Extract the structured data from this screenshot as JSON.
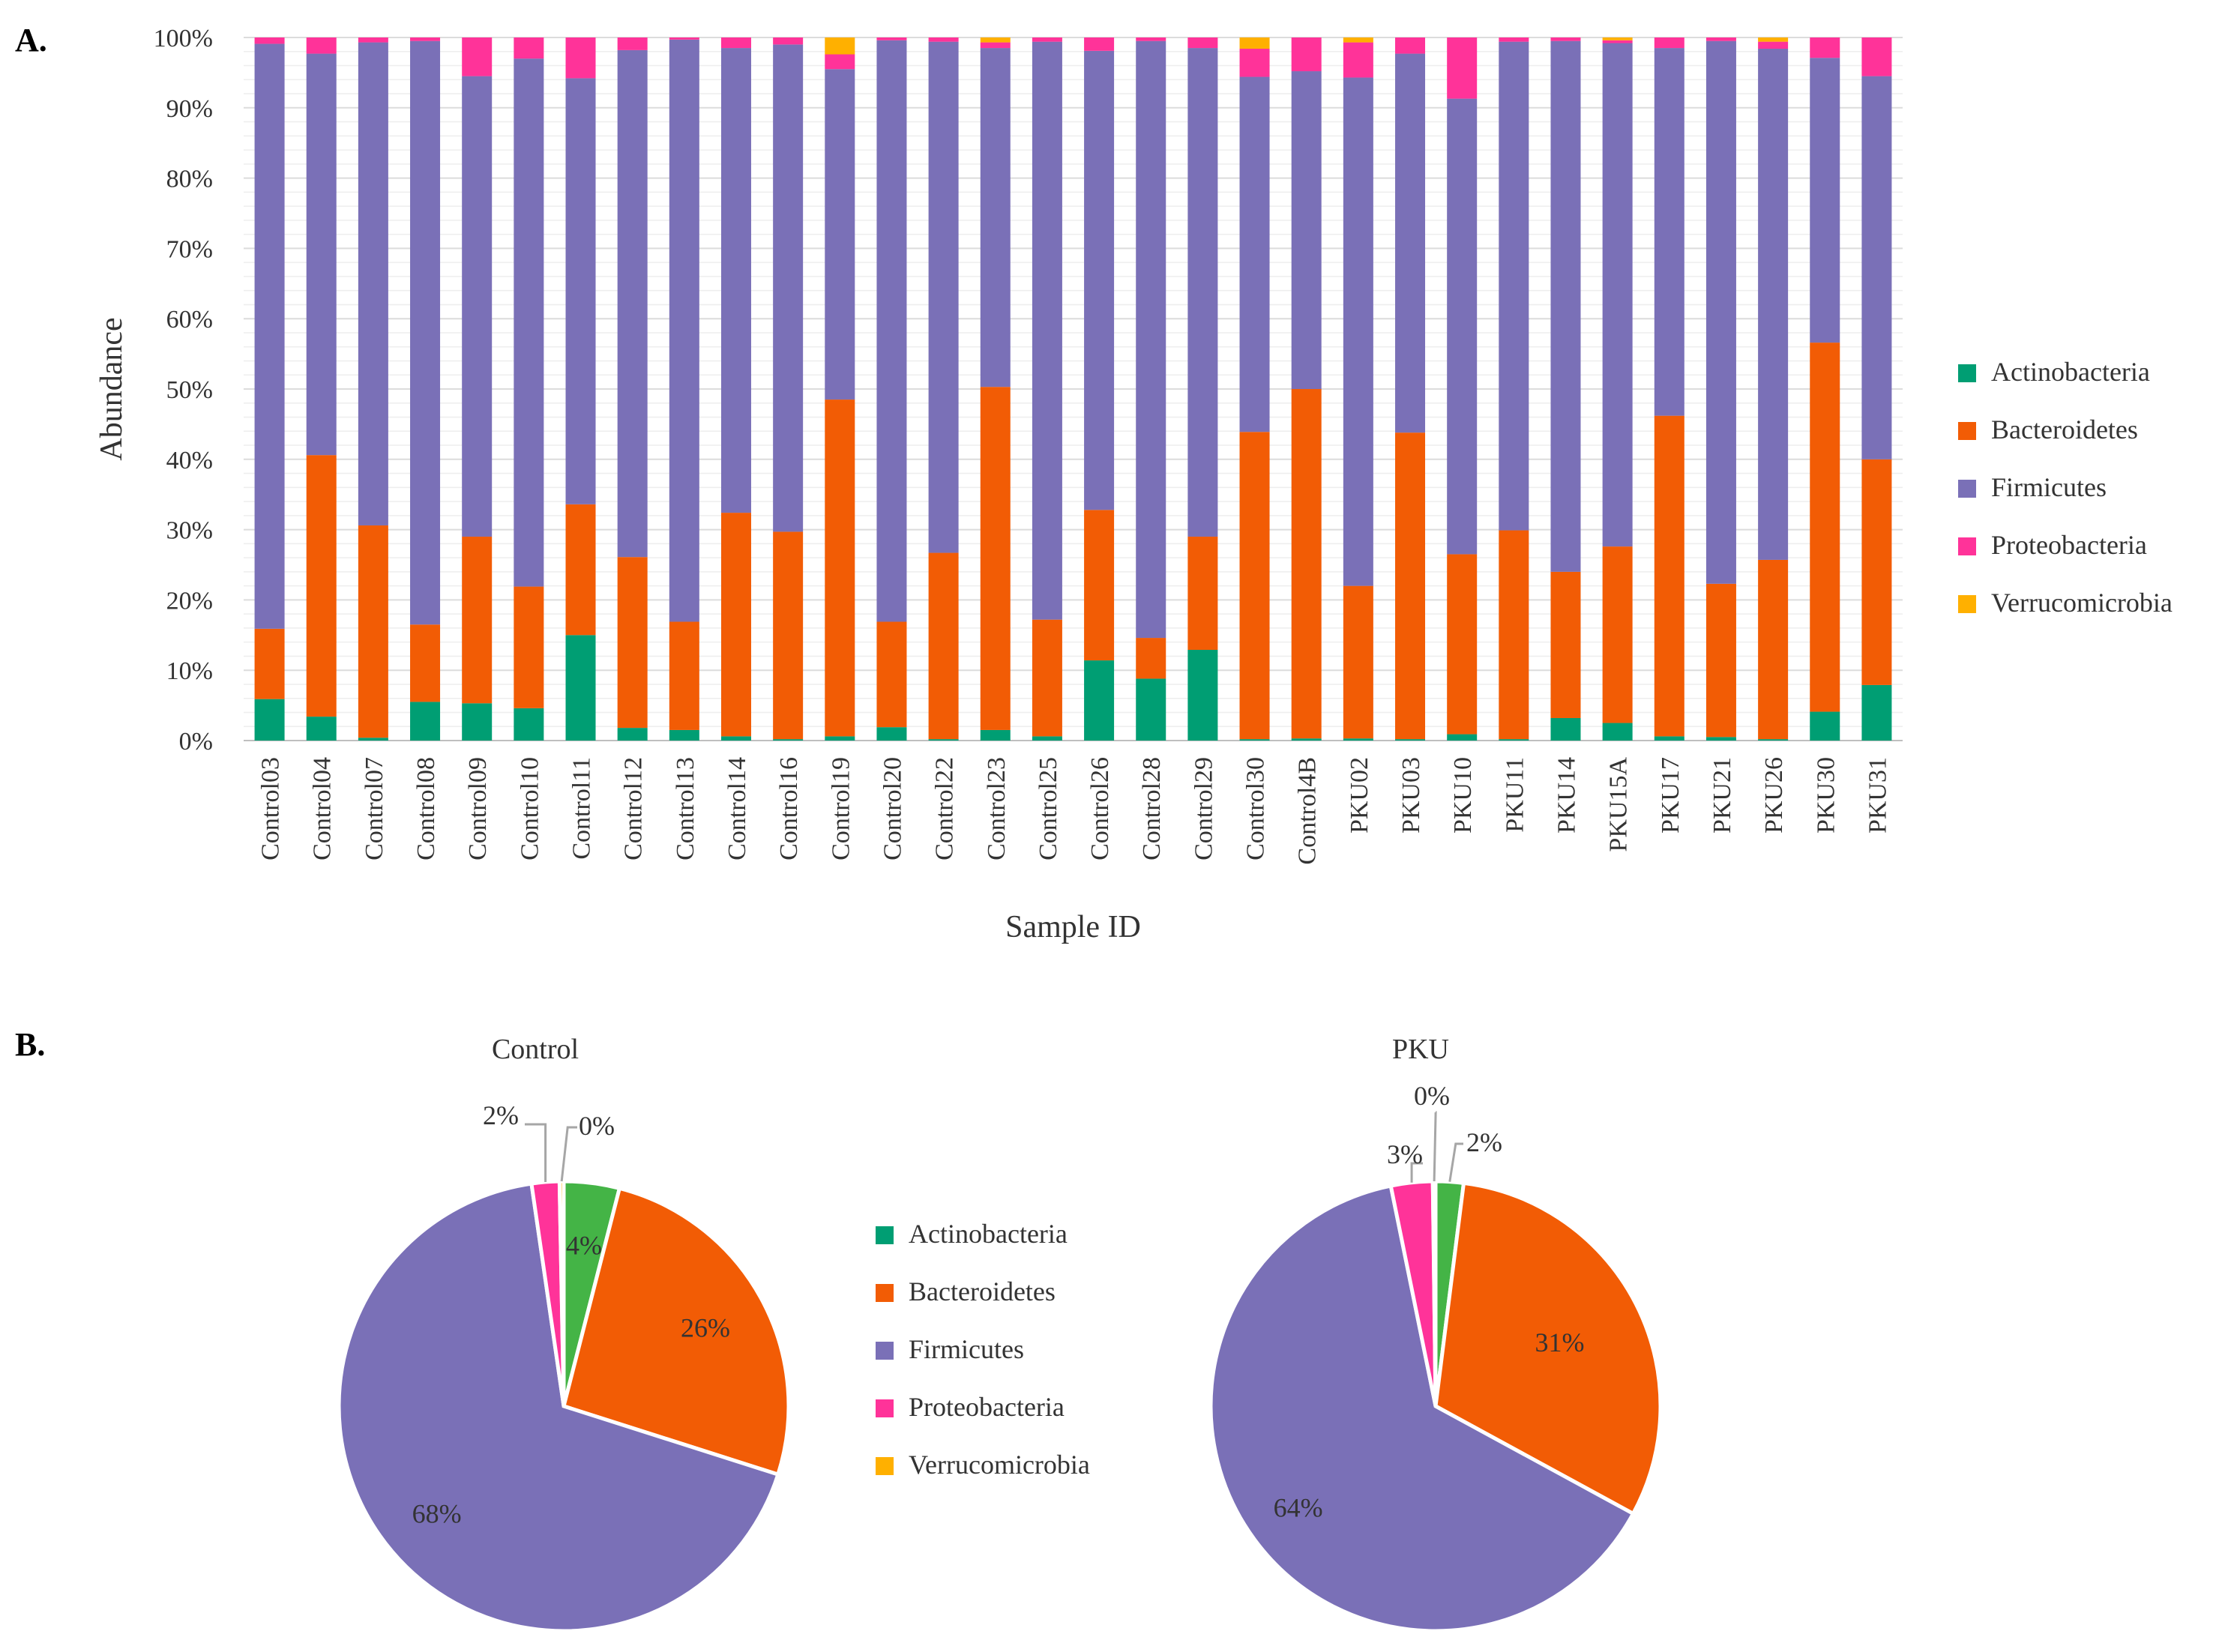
{
  "panels": {
    "a": "A.",
    "b": "B."
  },
  "chart_data": [
    {
      "type": "bar",
      "stacked": true,
      "title": "",
      "xlabel": "Sample ID",
      "ylabel": "Abundance",
      "ylim": [
        0,
        100
      ],
      "yticks": [
        "0%",
        "10%",
        "20%",
        "30%",
        "40%",
        "50%",
        "60%",
        "70%",
        "80%",
        "90%",
        "100%"
      ],
      "grid": true,
      "legend_position": "right",
      "categories": [
        "Control03",
        "Control04",
        "Control07",
        "Control08",
        "Control09",
        "Control10",
        "Control11",
        "Control12",
        "Control13",
        "Control14",
        "Control16",
        "Control19",
        "Control20",
        "Control22",
        "Control23",
        "Control25",
        "Control26",
        "Control28",
        "Control29",
        "Control30",
        "Control4B",
        "PKU02",
        "PKU03",
        "PKU10",
        "PKU11",
        "PKU14",
        "PKU15A",
        "PKU17",
        "PKU21",
        "PKU26",
        "PKU30",
        "PKU31"
      ],
      "series": [
        {
          "name": "Actinobacteria",
          "color": "#009E73",
          "values": [
            5.9,
            3.4,
            0.4,
            5.5,
            5.3,
            4.6,
            15.0,
            1.8,
            1.5,
            0.6,
            0.2,
            0.6,
            1.9,
            0.2,
            1.5,
            0.6,
            11.4,
            8.8,
            12.9,
            0.2,
            0.3,
            0.3,
            0.2,
            0.9,
            0.2,
            3.2,
            2.5,
            0.6,
            0.5,
            0.2,
            4.1,
            7.9
          ]
        },
        {
          "name": "Bacteroidetes",
          "color": "#F25C05",
          "values": [
            10.0,
            37.2,
            30.2,
            11.0,
            23.7,
            17.3,
            18.6,
            24.3,
            15.4,
            31.8,
            29.5,
            47.9,
            15.0,
            26.5,
            48.8,
            16.6,
            21.4,
            5.8,
            16.1,
            43.7,
            49.7,
            21.7,
            43.6,
            25.6,
            29.7,
            20.8,
            25.1,
            45.6,
            21.8,
            25.5,
            52.5,
            32.1
          ]
        },
        {
          "name": "Firmicutes",
          "color": "#7A70B7",
          "values": [
            83.2,
            57.1,
            68.7,
            83.0,
            65.5,
            75.1,
            60.6,
            72.1,
            82.8,
            66.1,
            69.3,
            47.0,
            82.7,
            72.7,
            48.2,
            82.2,
            65.3,
            84.9,
            69.5,
            50.5,
            45.2,
            72.3,
            53.9,
            64.8,
            69.5,
            75.5,
            71.6,
            52.3,
            77.2,
            72.7,
            40.5,
            54.5
          ]
        },
        {
          "name": "Proteobacteria",
          "color": "#FF3399",
          "values": [
            0.9,
            2.3,
            0.7,
            0.5,
            5.5,
            3.0,
            5.8,
            1.8,
            0.3,
            1.5,
            1.0,
            2.1,
            0.4,
            0.6,
            0.8,
            0.6,
            1.9,
            0.5,
            1.5,
            4.0,
            4.8,
            5.0,
            2.3,
            8.7,
            0.6,
            0.5,
            0.4,
            1.5,
            0.5,
            1.0,
            2.9,
            5.5
          ]
        },
        {
          "name": "Verrucomicrobia",
          "color": "#FFB000",
          "values": [
            0.0,
            0.0,
            0.0,
            0.0,
            0.0,
            0.0,
            0.0,
            0.0,
            0.0,
            0.0,
            0.0,
            2.4,
            0.0,
            0.0,
            0.7,
            0.0,
            0.0,
            0.0,
            0.0,
            1.6,
            0.0,
            0.7,
            0.0,
            0.0,
            0.0,
            0.0,
            0.4,
            0.0,
            0.0,
            0.6,
            0.0,
            0.0
          ]
        }
      ]
    },
    {
      "type": "pie",
      "title": "Control",
      "slices": [
        {
          "name": "Actinobacteria",
          "value": 4,
          "label": "4%",
          "color": "#44B446"
        },
        {
          "name": "Bacteroidetes",
          "value": 26,
          "label": "26%",
          "color": "#F25C05"
        },
        {
          "name": "Firmicutes",
          "value": 68,
          "label": "68%",
          "color": "#7A70B7"
        },
        {
          "name": "Proteobacteria",
          "value": 2,
          "label": "2%",
          "color": "#FF3399"
        },
        {
          "name": "Verrucomicrobia",
          "value": 0.3,
          "label": "0%",
          "color": "#FFB000"
        }
      ]
    },
    {
      "type": "pie",
      "title": "PKU",
      "slices": [
        {
          "name": "Actinobacteria",
          "value": 2,
          "label": "2%",
          "color": "#44B446"
        },
        {
          "name": "Bacteroidetes",
          "value": 31,
          "label": "31%",
          "color": "#F25C05"
        },
        {
          "name": "Firmicutes",
          "value": 64,
          "label": "64%",
          "color": "#7A70B7"
        },
        {
          "name": "Proteobacteria",
          "value": 3,
          "label": "3%",
          "color": "#FF3399"
        },
        {
          "name": "Verrucomicrobia",
          "value": 0.2,
          "label": "0%",
          "color": "#FFB000"
        }
      ]
    }
  ],
  "legend": [
    {
      "name": "Actinobacteria",
      "color": "#009E73"
    },
    {
      "name": "Bacteroidetes",
      "color": "#F25C05"
    },
    {
      "name": "Firmicutes",
      "color": "#7A70B7"
    },
    {
      "name": "Proteobacteria",
      "color": "#FF3399"
    },
    {
      "name": "Verrucomicrobia",
      "color": "#FFB000"
    }
  ]
}
